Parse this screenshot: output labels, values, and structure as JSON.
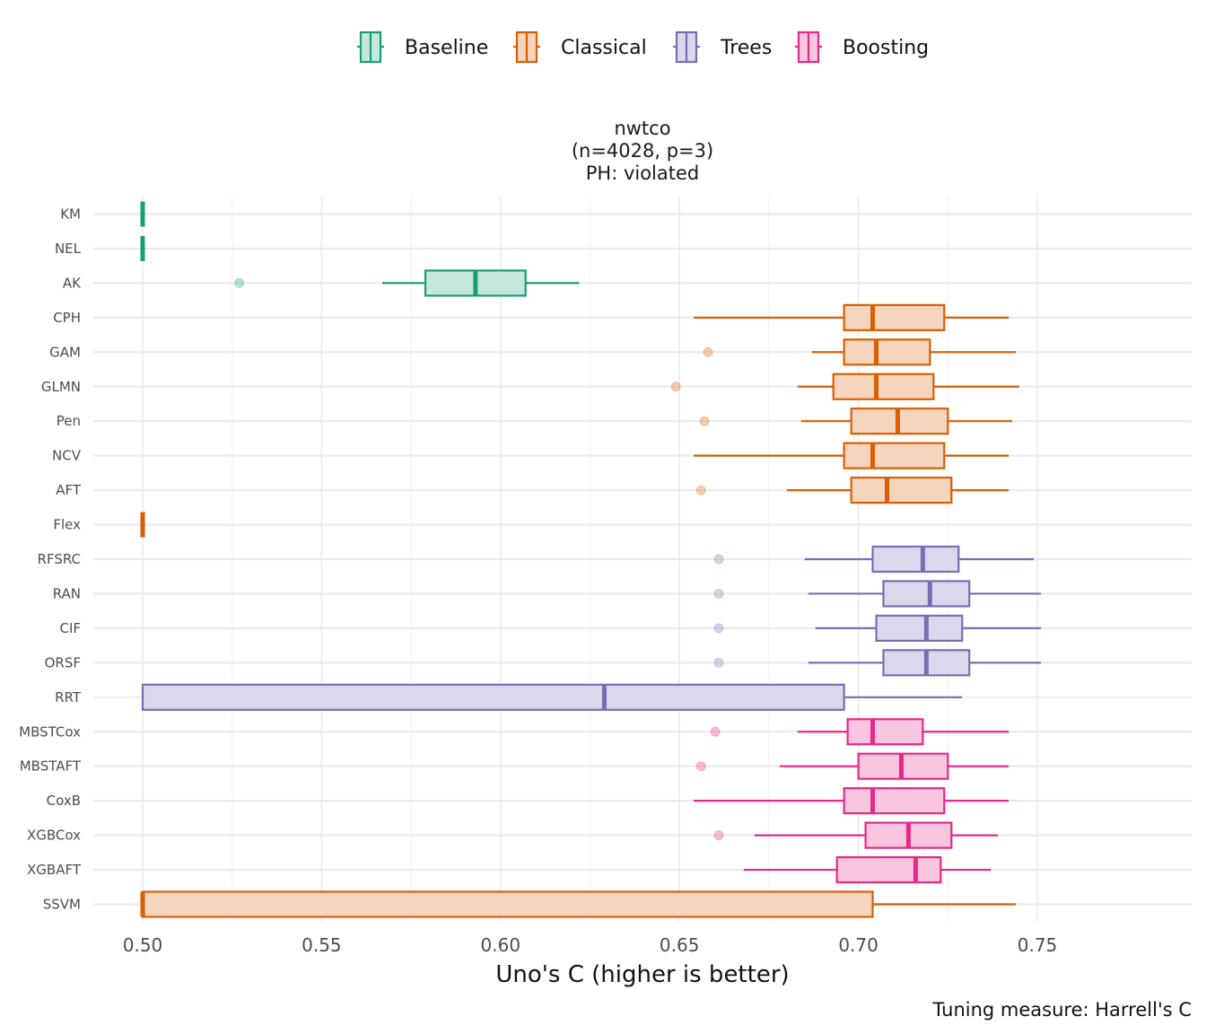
{
  "chart_data": {
    "type": "boxplot",
    "orientation": "horizontal",
    "title": [
      "nwtco",
      "(n=4028, p=3)",
      "PH: violated"
    ],
    "xlabel": "Uno's C (higher is better)",
    "caption": "Tuning measure: Harrell's C",
    "xlim": [
      0.4875,
      0.7535
    ],
    "xticks": [
      0.5,
      0.55,
      0.6,
      0.65,
      0.7,
      0.75
    ],
    "xtick_labels": [
      "0.50",
      "0.55",
      "0.60",
      "0.65",
      "0.70",
      "0.75"
    ],
    "grid": true,
    "legend": {
      "position": "top",
      "entries": [
        {
          "key": "Baseline",
          "label": "Baseline"
        },
        {
          "key": "Classical",
          "label": "Classical"
        },
        {
          "key": "Trees",
          "label": "Trees"
        },
        {
          "key": "Boosting",
          "label": "Boosting"
        }
      ]
    },
    "group_colors": {
      "Baseline": {
        "stroke": "#1b9e77",
        "fill": "#c6e7dd"
      },
      "Classical": {
        "stroke": "#d95f02",
        "fill": "#f6d5bf"
      },
      "Trees": {
        "stroke": "#7570b3",
        "fill": "#dad9ec"
      },
      "Boosting": {
        "stroke": "#e7298a",
        "fill": "#f9c6e0"
      }
    },
    "boxes": [
      {
        "label": "KM",
        "group": "Baseline",
        "wlo": 0.5,
        "q1": 0.5,
        "med": 0.5,
        "q3": 0.5,
        "whi": 0.5,
        "outliers": []
      },
      {
        "label": "NEL",
        "group": "Baseline",
        "wlo": 0.5,
        "q1": 0.5,
        "med": 0.5,
        "q3": 0.5,
        "whi": 0.5,
        "outliers": []
      },
      {
        "label": "AK",
        "group": "Baseline",
        "wlo": 0.567,
        "q1": 0.579,
        "med": 0.593,
        "q3": 0.607,
        "whi": 0.622,
        "outliers": [
          0.527
        ]
      },
      {
        "label": "CPH",
        "group": "Classical",
        "wlo": 0.654,
        "q1": 0.696,
        "med": 0.704,
        "q3": 0.724,
        "whi": 0.742,
        "outliers": []
      },
      {
        "label": "GAM",
        "group": "Classical",
        "wlo": 0.687,
        "q1": 0.696,
        "med": 0.705,
        "q3": 0.72,
        "whi": 0.744,
        "outliers": [
          0.658
        ]
      },
      {
        "label": "GLMN",
        "group": "Classical",
        "wlo": 0.683,
        "q1": 0.693,
        "med": 0.705,
        "q3": 0.721,
        "whi": 0.745,
        "outliers": [
          0.649
        ]
      },
      {
        "label": "Pen",
        "group": "Classical",
        "wlo": 0.684,
        "q1": 0.698,
        "med": 0.711,
        "q3": 0.725,
        "whi": 0.743,
        "outliers": [
          0.657
        ]
      },
      {
        "label": "NCV",
        "group": "Classical",
        "wlo": 0.654,
        "q1": 0.696,
        "med": 0.704,
        "q3": 0.724,
        "whi": 0.742,
        "outliers": []
      },
      {
        "label": "AFT",
        "group": "Classical",
        "wlo": 0.68,
        "q1": 0.698,
        "med": 0.708,
        "q3": 0.726,
        "whi": 0.742,
        "outliers": [
          0.656
        ]
      },
      {
        "label": "Flex",
        "group": "Classical",
        "wlo": 0.5,
        "q1": 0.5,
        "med": 0.5,
        "q3": 0.5,
        "whi": 0.5,
        "outliers": []
      },
      {
        "label": "RFSRC",
        "group": "Trees",
        "wlo": 0.685,
        "q1": 0.704,
        "med": 0.718,
        "q3": 0.728,
        "whi": 0.749,
        "outliers": [
          0.661
        ]
      },
      {
        "label": "RAN",
        "group": "Trees",
        "wlo": 0.686,
        "q1": 0.707,
        "med": 0.72,
        "q3": 0.731,
        "whi": 0.751,
        "outliers": [
          0.661
        ]
      },
      {
        "label": "CIF",
        "group": "Trees",
        "wlo": 0.688,
        "q1": 0.705,
        "med": 0.719,
        "q3": 0.729,
        "whi": 0.751,
        "outliers": [
          0.661
        ]
      },
      {
        "label": "ORSF",
        "group": "Trees",
        "wlo": 0.686,
        "q1": 0.707,
        "med": 0.719,
        "q3": 0.731,
        "whi": 0.751,
        "outliers": [
          0.661
        ]
      },
      {
        "label": "RRT",
        "group": "Trees",
        "wlo": 0.5,
        "q1": 0.5,
        "med": 0.629,
        "q3": 0.696,
        "whi": 0.729,
        "outliers": []
      },
      {
        "label": "MBSTCox",
        "group": "Boosting",
        "wlo": 0.683,
        "q1": 0.697,
        "med": 0.704,
        "q3": 0.718,
        "whi": 0.742,
        "outliers": [
          0.66
        ]
      },
      {
        "label": "MBSTAFT",
        "group": "Boosting",
        "wlo": 0.678,
        "q1": 0.7,
        "med": 0.712,
        "q3": 0.725,
        "whi": 0.742,
        "outliers": [
          0.656
        ]
      },
      {
        "label": "CoxB",
        "group": "Boosting",
        "wlo": 0.654,
        "q1": 0.696,
        "med": 0.704,
        "q3": 0.724,
        "whi": 0.742,
        "outliers": []
      },
      {
        "label": "XGBCox",
        "group": "Boosting",
        "wlo": 0.671,
        "q1": 0.702,
        "med": 0.714,
        "q3": 0.726,
        "whi": 0.739,
        "outliers": [
          0.661
        ]
      },
      {
        "label": "XGBAFT",
        "group": "Boosting",
        "wlo": 0.668,
        "q1": 0.694,
        "med": 0.716,
        "q3": 0.723,
        "whi": 0.737,
        "outliers": []
      },
      {
        "label": "SSVM",
        "group": "Classical",
        "wlo": 0.5,
        "q1": 0.5,
        "med": 0.5,
        "q3": 0.704,
        "whi": 0.744,
        "outliers": []
      }
    ]
  }
}
